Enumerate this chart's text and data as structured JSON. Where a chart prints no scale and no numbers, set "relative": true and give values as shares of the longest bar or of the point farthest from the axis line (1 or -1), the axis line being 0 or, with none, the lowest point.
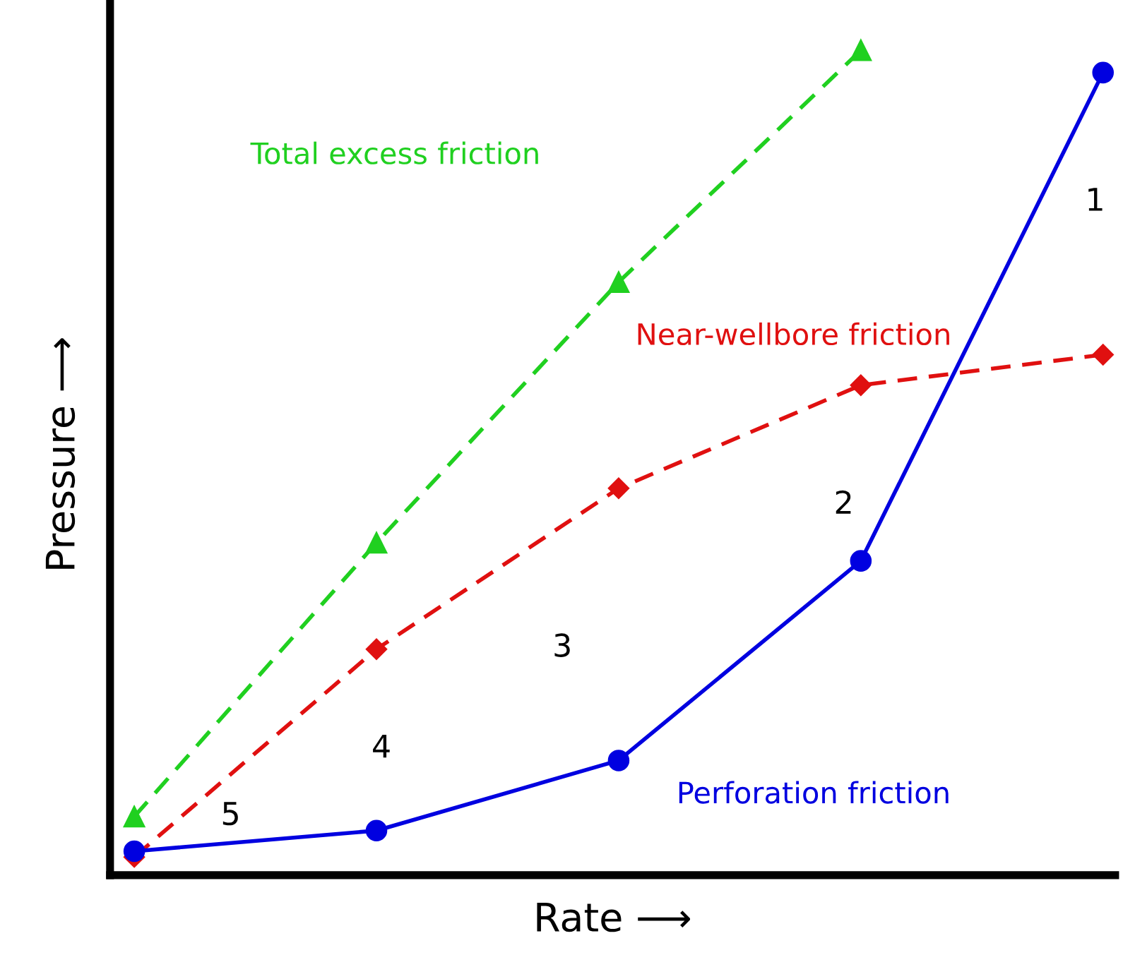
{
  "chart_data": {
    "type": "line",
    "relative": true,
    "xlabel": "Rate ⟶",
    "ylabel": "Pressure ⟶",
    "categories": [
      null,
      null,
      null,
      null,
      null
    ],
    "series": [
      {
        "name": "Perforation friction",
        "color": "#0000e0",
        "marker": "circle",
        "line_style": "solid",
        "values": [
          0.029,
          0.054,
          0.139,
          0.381,
          0.973
        ]
      },
      {
        "name": "Near-wellbore friction",
        "color": "#e01010",
        "marker": "diamond",
        "line_style": "dashed",
        "values": [
          0.022,
          0.274,
          0.469,
          0.594,
          0.631
        ]
      },
      {
        "name": "Total excess friction",
        "color": "#20d020",
        "marker": "triangle",
        "line_style": "dashed",
        "values": [
          0.071,
          0.403,
          0.719,
          1,
          null
        ]
      }
    ],
    "annotations": [
      "1",
      "2",
      "3",
      "4",
      "5"
    ]
  }
}
